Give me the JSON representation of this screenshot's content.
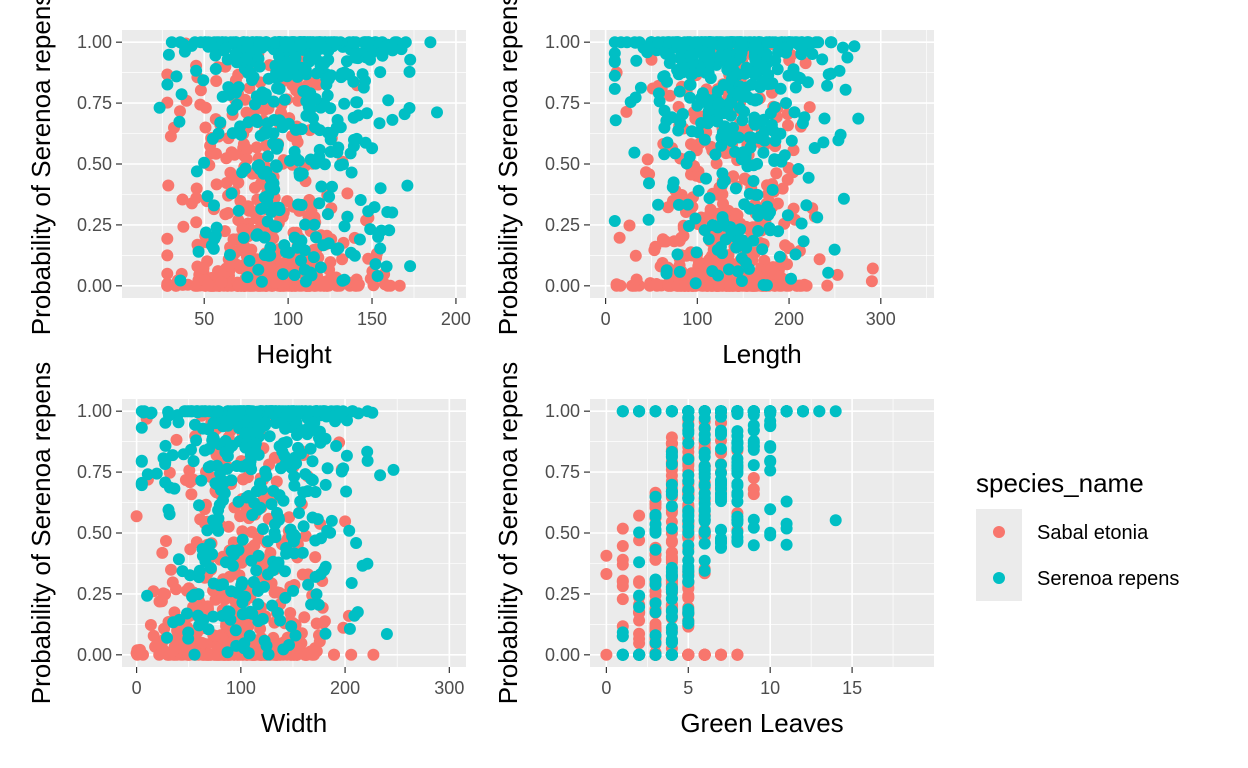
{
  "colors": {
    "panel_background": "#ebebeb",
    "grid_major": "#ffffff",
    "tick_text": "#4d4d4d",
    "sabal": "#f8766d",
    "serenoa": "#00bfc4"
  },
  "legend": {
    "title": "species_name",
    "items": [
      {
        "label": "Sabal etonia",
        "color": "#f8766d"
      },
      {
        "label": "Serenoa repens",
        "color": "#00bfc4"
      }
    ]
  },
  "chart_data": [
    {
      "type": "scatter",
      "xlabel": "Height",
      "ylabel": "Probability of Serenoa repens",
      "xlim": [
        1,
        206
      ],
      "ylim": [
        -0.05,
        1.05
      ],
      "xticks": [
        50,
        100,
        150,
        200
      ],
      "yticks": [
        0.0,
        0.25,
        0.5,
        0.75,
        1.0
      ],
      "ytick_labels": [
        "0.00",
        "0.25",
        "0.50",
        "0.75",
        "1.00"
      ],
      "grid": true,
      "series": [
        {
          "name": "Sabal etonia",
          "color": "#f8766d",
          "x_center": 85,
          "x_spread": 28,
          "x_range": [
            28,
            182
          ],
          "n": 480
        },
        {
          "name": "Serenoa repens",
          "color": "#00bfc4",
          "x_center": 105,
          "x_spread": 32,
          "x_range": [
            10,
            197
          ],
          "n": 480
        }
      ]
    },
    {
      "type": "scatter",
      "xlabel": "Length",
      "ylabel": "Probability of Serenoa repens",
      "xlim": [
        -17,
        358
      ],
      "ylim": [
        -0.05,
        1.05
      ],
      "xticks": [
        0,
        100,
        200,
        300
      ],
      "yticks": [
        0.0,
        0.25,
        0.5,
        0.75,
        1.0
      ],
      "ytick_labels": [
        "0.00",
        "0.25",
        "0.50",
        "0.75",
        "1.00"
      ],
      "grid": true,
      "series": [
        {
          "name": "Sabal etonia",
          "color": "#f8766d",
          "x_center": 130,
          "x_spread": 45,
          "x_range": [
            12,
            345
          ],
          "n": 480
        },
        {
          "name": "Serenoa repens",
          "color": "#00bfc4",
          "x_center": 140,
          "x_spread": 55,
          "x_range": [
            10,
            312
          ],
          "n": 480
        }
      ]
    },
    {
      "type": "scatter",
      "xlabel": "Width",
      "ylabel": "Probability of Serenoa repens",
      "xlim": [
        -14,
        316
      ],
      "ylim": [
        -0.05,
        1.05
      ],
      "xticks": [
        0,
        100,
        200,
        300
      ],
      "yticks": [
        0.0,
        0.25,
        0.5,
        0.75,
        1.0
      ],
      "ytick_labels": [
        "0.00",
        "0.25",
        "0.50",
        "0.75",
        "1.00"
      ],
      "grid": true,
      "series": [
        {
          "name": "Sabal etonia",
          "color": "#f8766d",
          "x_center": 95,
          "x_spread": 40,
          "x_range": [
            0,
            305
          ],
          "n": 480
        },
        {
          "name": "Serenoa repens",
          "color": "#00bfc4",
          "x_center": 115,
          "x_spread": 48,
          "x_range": [
            5,
            290
          ],
          "n": 480
        }
      ]
    },
    {
      "type": "scatter",
      "xlabel": "Green Leaves",
      "ylabel": "Probability of Serenoa repens",
      "xlim": [
        -1,
        20
      ],
      "ylim": [
        -0.05,
        1.05
      ],
      "xticks": [
        0,
        5,
        10,
        15
      ],
      "yticks": [
        0.0,
        0.25,
        0.5,
        0.75,
        1.0
      ],
      "ytick_labels": [
        "0.00",
        "0.25",
        "0.50",
        "0.75",
        "1.00"
      ],
      "grid": true,
      "series": [
        {
          "name": "Sabal etonia",
          "color": "#f8766d",
          "x_center": 4.5,
          "x_spread": 1.6,
          "x_range": [
            0,
            9
          ],
          "n": 420
        },
        {
          "name": "Serenoa repens",
          "color": "#00bfc4",
          "x_center": 6.5,
          "x_spread": 2.6,
          "x_range": [
            1,
            19
          ],
          "n": 420
        }
      ]
    }
  ]
}
